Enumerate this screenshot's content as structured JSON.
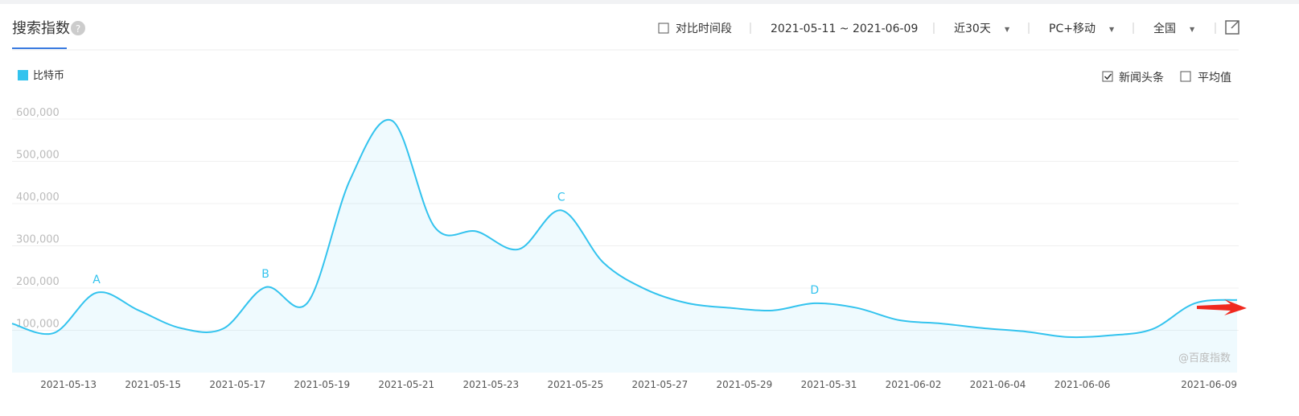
{
  "header": {
    "title": "搜索指数"
  },
  "toolbar": {
    "compare": "对比时间段",
    "range": "2021-05-11 ~ 2021-06-09",
    "period": "近30天",
    "device": "PC+移动",
    "region": "全国"
  },
  "options": [
    {
      "label": "新闻头条",
      "checked": true
    },
    {
      "label": "平均值",
      "checked": false
    }
  ],
  "watermark": "@百度指数",
  "chart_data": {
    "type": "line",
    "categories": [
      null,
      null,
      "2021-05-13",
      null,
      "2021-05-15",
      null,
      "2021-05-17",
      null,
      "2021-05-19",
      null,
      "2021-05-21",
      null,
      "2021-05-23",
      null,
      "2021-05-25",
      null,
      "2021-05-27",
      null,
      "2021-05-29",
      null,
      "2021-05-31",
      null,
      "2021-06-02",
      null,
      "2021-06-04",
      null,
      "2021-06-06",
      null,
      null,
      "2021-06-09"
    ],
    "series": [
      {
        "name": "比特币",
        "color": "#33c3ee",
        "values": [
          116000,
          94000,
          189000,
          147000,
          105000,
          104000,
          202000,
          166000,
          456000,
          596000,
          345000,
          334000,
          292000,
          384000,
          260000,
          197000,
          164000,
          153000,
          147000,
          164000,
          153000,
          124000,
          116000,
          105000,
          97000,
          84000,
          88000,
          103000,
          164000,
          172000
        ]
      }
    ],
    "ylim": [
      0,
      600000
    ],
    "yticks": [
      {
        "value": 100000,
        "label": "100,000"
      },
      {
        "value": 200000,
        "label": "200,000"
      },
      {
        "value": 300000,
        "label": "300,000"
      },
      {
        "value": 400000,
        "label": "400,000"
      },
      {
        "value": 500000,
        "label": "500,000"
      },
      {
        "value": 600000,
        "label": "600,000"
      }
    ],
    "grid": true,
    "annotations": [
      "A",
      "B",
      "C",
      "D"
    ]
  }
}
